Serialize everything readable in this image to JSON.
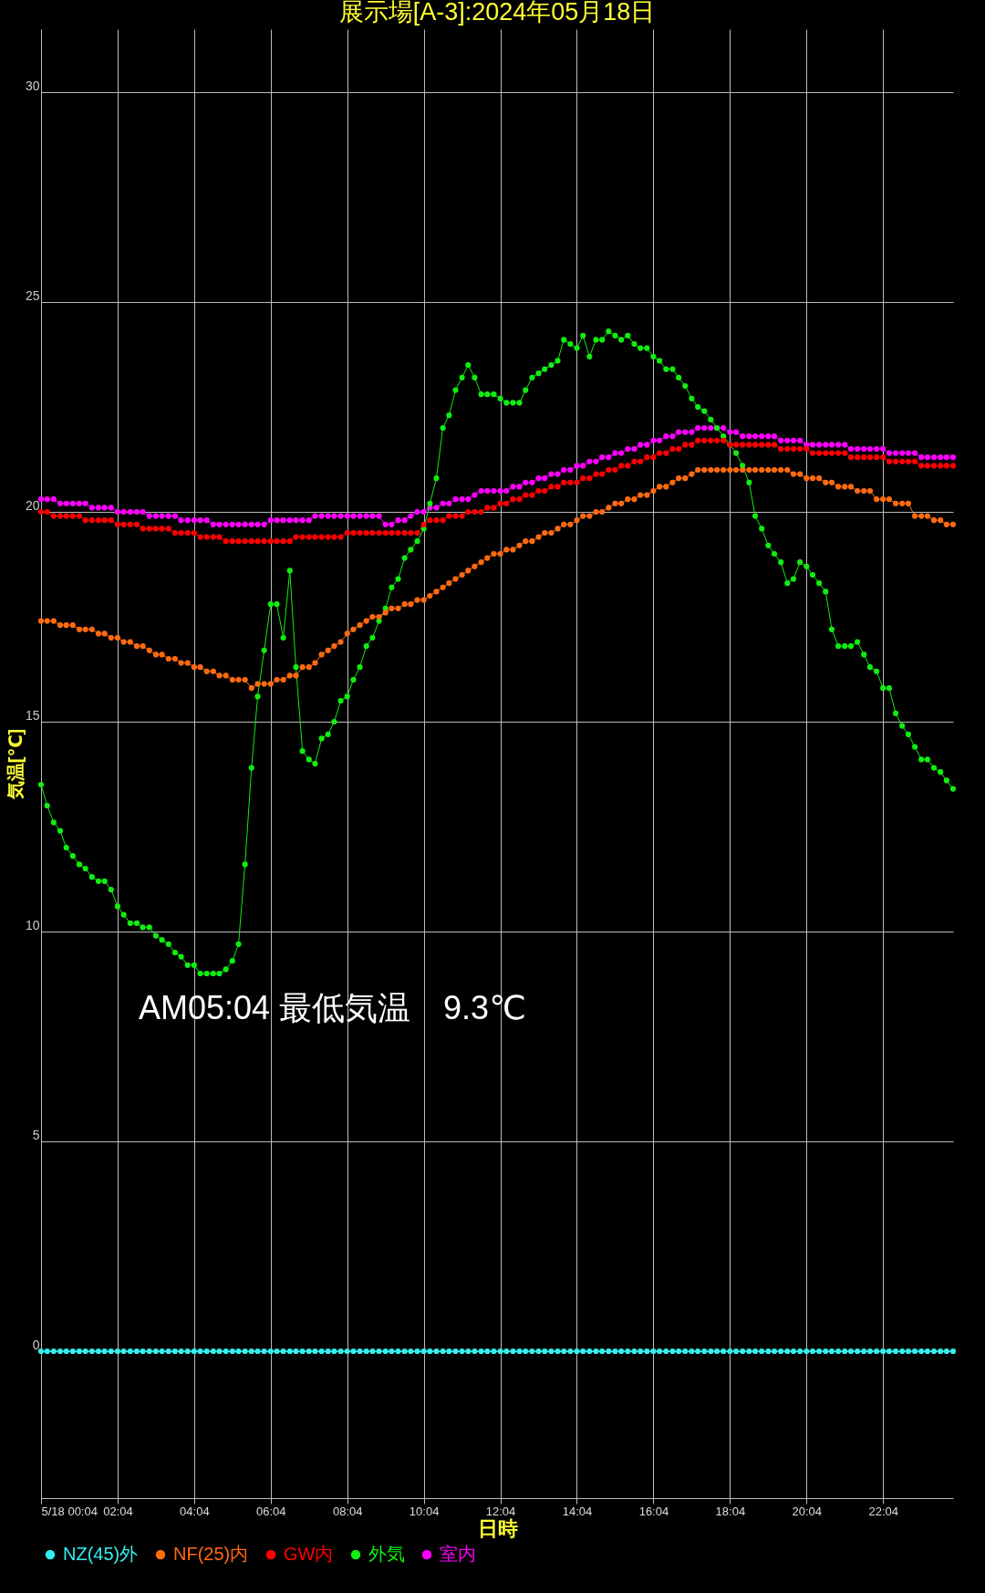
{
  "chart_data": {
    "type": "line",
    "title": "展示場[A-3]:2024年05月18日",
    "xlabel": "日時",
    "ylabel": "気温[℃]",
    "annotations": [
      "AM05:04 最低気温　9.3℃"
    ],
    "x": [
      0.07,
      0.23,
      0.4,
      0.57,
      0.73,
      0.9,
      1.07,
      1.23,
      1.4,
      1.57,
      1.73,
      1.9,
      2.07,
      2.23,
      2.4,
      2.57,
      2.73,
      2.9,
      3.07,
      3.23,
      3.4,
      3.57,
      3.73,
      3.9,
      4.07,
      4.23,
      4.4,
      4.57,
      4.73,
      4.9,
      5.07,
      5.23,
      5.4,
      5.57,
      5.73,
      5.9,
      6.07,
      6.23,
      6.4,
      6.57,
      6.73,
      6.9,
      7.07,
      7.23,
      7.4,
      7.57,
      7.73,
      7.9,
      8.07,
      8.23,
      8.4,
      8.57,
      8.73,
      8.9,
      9.07,
      9.23,
      9.4,
      9.57,
      9.73,
      9.9,
      10.07,
      10.23,
      10.4,
      10.57,
      10.73,
      10.9,
      11.07,
      11.23,
      11.4,
      11.57,
      11.73,
      11.9,
      12.07,
      12.23,
      12.4,
      12.57,
      12.73,
      12.9,
      13.07,
      13.23,
      13.4,
      13.57,
      13.73,
      13.9,
      14.07,
      14.23,
      14.4,
      14.57,
      14.73,
      14.9,
      15.07,
      15.23,
      15.4,
      15.57,
      15.73,
      15.9,
      16.07,
      16.23,
      16.4,
      16.57,
      16.73,
      16.9,
      17.07,
      17.23,
      17.4,
      17.57,
      17.73,
      17.9,
      18.07,
      18.23,
      18.4,
      18.57,
      18.73,
      18.9,
      19.07,
      19.23,
      19.4,
      19.57,
      19.73,
      19.9,
      20.07,
      20.23,
      20.4,
      20.57,
      20.73,
      20.9,
      21.07,
      21.23,
      21.4,
      21.57,
      21.73,
      21.9,
      22.07,
      22.23,
      22.4,
      22.57,
      22.73,
      22.9,
      23.07,
      23.23,
      23.4,
      23.57,
      23.73,
      23.9
    ],
    "series": [
      {
        "name": "NZ(45)外",
        "color": "#33eeee",
        "values": [
          0,
          0,
          0,
          0,
          0,
          0,
          0,
          0,
          0,
          0,
          0,
          0,
          0,
          0,
          0,
          0,
          0,
          0,
          0,
          0,
          0,
          0,
          0,
          0,
          0,
          0,
          0,
          0,
          0,
          0,
          0,
          0,
          0,
          0,
          0,
          0,
          0,
          0,
          0,
          0,
          0,
          0,
          0,
          0,
          0,
          0,
          0,
          0,
          0,
          0,
          0,
          0,
          0,
          0,
          0,
          0,
          0,
          0,
          0,
          0,
          0,
          0,
          0,
          0,
          0,
          0,
          0,
          0,
          0,
          0,
          0,
          0,
          0,
          0,
          0,
          0,
          0,
          0,
          0,
          0,
          0,
          0,
          0,
          0,
          0,
          0,
          0,
          0,
          0,
          0,
          0,
          0,
          0,
          0,
          0,
          0,
          0,
          0,
          0,
          0,
          0,
          0,
          0,
          0,
          0,
          0,
          0,
          0,
          0,
          0,
          0,
          0,
          0,
          0,
          0,
          0,
          0,
          0,
          0,
          0,
          0,
          0,
          0,
          0,
          0,
          0,
          0,
          0,
          0,
          0,
          0,
          0,
          0,
          0,
          0,
          0,
          0,
          0,
          0,
          0,
          0,
          0,
          0,
          0
        ]
      },
      {
        "name": "NF(25)内",
        "color": "#ff6a10",
        "values": [
          17.4,
          17.4,
          17.4,
          17.3,
          17.3,
          17.3,
          17.2,
          17.2,
          17.2,
          17.1,
          17.1,
          17.0,
          17.0,
          16.9,
          16.9,
          16.8,
          16.8,
          16.7,
          16.6,
          16.6,
          16.5,
          16.5,
          16.4,
          16.4,
          16.3,
          16.3,
          16.2,
          16.2,
          16.1,
          16.1,
          16.0,
          16.0,
          16.0,
          15.8,
          15.9,
          15.9,
          15.9,
          16.0,
          16.0,
          16.1,
          16.1,
          16.3,
          16.3,
          16.4,
          16.6,
          16.7,
          16.8,
          16.9,
          17.1,
          17.2,
          17.3,
          17.4,
          17.5,
          17.5,
          17.6,
          17.7,
          17.7,
          17.8,
          17.8,
          17.9,
          17.9,
          18.0,
          18.1,
          18.2,
          18.3,
          18.4,
          18.5,
          18.6,
          18.7,
          18.8,
          18.9,
          19.0,
          19.0,
          19.1,
          19.1,
          19.2,
          19.3,
          19.3,
          19.4,
          19.5,
          19.5,
          19.6,
          19.7,
          19.7,
          19.8,
          19.9,
          19.9,
          20.0,
          20.0,
          20.1,
          20.2,
          20.2,
          20.3,
          20.3,
          20.4,
          20.4,
          20.5,
          20.6,
          20.6,
          20.7,
          20.8,
          20.8,
          20.9,
          21.0,
          21.0,
          21.0,
          21.0,
          21.0,
          21.0,
          21.0,
          21.0,
          21.0,
          21.0,
          21.0,
          21.0,
          21.0,
          21.0,
          21.0,
          20.9,
          20.9,
          20.8,
          20.8,
          20.8,
          20.7,
          20.7,
          20.6,
          20.6,
          20.6,
          20.5,
          20.5,
          20.5,
          20.3,
          20.3,
          20.3,
          20.2,
          20.2,
          20.2,
          19.9,
          19.9,
          19.9,
          19.8,
          19.8,
          19.7,
          19.7
        ]
      },
      {
        "name": "GW内",
        "color": "#ff0000",
        "values": [
          20.0,
          20.0,
          19.9,
          19.9,
          19.9,
          19.9,
          19.9,
          19.8,
          19.8,
          19.8,
          19.8,
          19.8,
          19.7,
          19.7,
          19.7,
          19.7,
          19.6,
          19.6,
          19.6,
          19.6,
          19.6,
          19.5,
          19.5,
          19.5,
          19.5,
          19.4,
          19.4,
          19.4,
          19.4,
          19.3,
          19.3,
          19.3,
          19.3,
          19.3,
          19.3,
          19.3,
          19.3,
          19.3,
          19.3,
          19.3,
          19.4,
          19.4,
          19.4,
          19.4,
          19.4,
          19.4,
          19.4,
          19.4,
          19.5,
          19.5,
          19.5,
          19.5,
          19.5,
          19.5,
          19.5,
          19.5,
          19.5,
          19.5,
          19.5,
          19.5,
          19.7,
          19.8,
          19.8,
          19.8,
          19.9,
          19.9,
          19.9,
          20.0,
          20.0,
          20.0,
          20.1,
          20.1,
          20.2,
          20.2,
          20.3,
          20.3,
          20.4,
          20.4,
          20.5,
          20.5,
          20.6,
          20.6,
          20.7,
          20.7,
          20.7,
          20.8,
          20.8,
          20.9,
          20.9,
          21.0,
          21.0,
          21.1,
          21.1,
          21.2,
          21.2,
          21.3,
          21.3,
          21.4,
          21.4,
          21.5,
          21.5,
          21.6,
          21.6,
          21.7,
          21.7,
          21.7,
          21.7,
          21.7,
          21.6,
          21.6,
          21.6,
          21.6,
          21.6,
          21.6,
          21.6,
          21.6,
          21.5,
          21.5,
          21.5,
          21.5,
          21.5,
          21.4,
          21.4,
          21.4,
          21.4,
          21.4,
          21.4,
          21.3,
          21.3,
          21.3,
          21.3,
          21.3,
          21.3,
          21.2,
          21.2,
          21.2,
          21.2,
          21.2,
          21.1,
          21.1,
          21.1,
          21.1,
          21.1,
          21.1
        ]
      },
      {
        "name": "外気",
        "color": "#11ee11",
        "values": [
          13.5,
          13.0,
          12.6,
          12.4,
          12.0,
          11.8,
          11.6,
          11.5,
          11.3,
          11.2,
          11.2,
          11.0,
          10.6,
          10.4,
          10.2,
          10.2,
          10.1,
          10.1,
          9.9,
          9.8,
          9.7,
          9.5,
          9.4,
          9.2,
          9.2,
          9.0,
          9.0,
          9.0,
          9.0,
          9.1,
          9.3,
          9.7,
          11.6,
          13.9,
          15.6,
          16.7,
          17.8,
          17.8,
          17.0,
          18.6,
          16.3,
          14.3,
          14.1,
          14.0,
          14.6,
          14.7,
          15.0,
          15.5,
          15.6,
          16.0,
          16.3,
          16.8,
          17.0,
          17.4,
          17.7,
          18.2,
          18.4,
          18.9,
          19.1,
          19.3,
          19.6,
          20.2,
          20.8,
          22.0,
          22.3,
          22.9,
          23.2,
          23.5,
          23.2,
          22.8,
          22.8,
          22.8,
          22.7,
          22.6,
          22.6,
          22.6,
          22.9,
          23.2,
          23.3,
          23.4,
          23.5,
          23.6,
          24.1,
          24.0,
          23.9,
          24.2,
          23.7,
          24.1,
          24.1,
          24.3,
          24.2,
          24.1,
          24.2,
          24.0,
          23.9,
          23.9,
          23.7,
          23.6,
          23.4,
          23.4,
          23.2,
          23.0,
          22.7,
          22.5,
          22.4,
          22.2,
          22.0,
          21.8,
          21.6,
          21.4,
          21.1,
          20.7,
          19.9,
          19.6,
          19.2,
          19.0,
          18.8,
          18.3,
          18.4,
          18.8,
          18.7,
          18.5,
          18.3,
          18.1,
          17.2,
          16.8,
          16.8,
          16.8,
          16.9,
          16.6,
          16.3,
          16.2,
          15.8,
          15.8,
          15.2,
          14.9,
          14.7,
          14.4,
          14.1,
          14.1,
          13.9,
          13.8,
          13.6,
          13.4
        ]
      },
      {
        "name": "室内",
        "color": "#ff00ff",
        "values": [
          20.3,
          20.3,
          20.3,
          20.2,
          20.2,
          20.2,
          20.2,
          20.2,
          20.1,
          20.1,
          20.1,
          20.1,
          20.0,
          20.0,
          20.0,
          20.0,
          20.0,
          19.9,
          19.9,
          19.9,
          19.9,
          19.9,
          19.8,
          19.8,
          19.8,
          19.8,
          19.8,
          19.7,
          19.7,
          19.7,
          19.7,
          19.7,
          19.7,
          19.7,
          19.7,
          19.7,
          19.8,
          19.8,
          19.8,
          19.8,
          19.8,
          19.8,
          19.8,
          19.9,
          19.9,
          19.9,
          19.9,
          19.9,
          19.9,
          19.9,
          19.9,
          19.9,
          19.9,
          19.9,
          19.7,
          19.7,
          19.8,
          19.8,
          19.9,
          20.0,
          20.0,
          20.1,
          20.1,
          20.2,
          20.2,
          20.3,
          20.3,
          20.3,
          20.4,
          20.5,
          20.5,
          20.5,
          20.5,
          20.5,
          20.6,
          20.6,
          20.7,
          20.7,
          20.8,
          20.8,
          20.9,
          20.9,
          21.0,
          21.0,
          21.1,
          21.1,
          21.2,
          21.2,
          21.3,
          21.3,
          21.4,
          21.4,
          21.5,
          21.5,
          21.6,
          21.6,
          21.7,
          21.7,
          21.8,
          21.8,
          21.9,
          21.9,
          21.9,
          22.0,
          22.0,
          22.0,
          22.0,
          22.0,
          21.9,
          21.9,
          21.8,
          21.8,
          21.8,
          21.8,
          21.8,
          21.8,
          21.7,
          21.7,
          21.7,
          21.7,
          21.6,
          21.6,
          21.6,
          21.6,
          21.6,
          21.6,
          21.6,
          21.5,
          21.5,
          21.5,
          21.5,
          21.5,
          21.5,
          21.4,
          21.4,
          21.4,
          21.4,
          21.4,
          21.3,
          21.3,
          21.3,
          21.3,
          21.3,
          21.3
        ]
      }
    ],
    "xlim": [
      0.07,
      23.9
    ],
    "xticks": [
      {
        "value": 0.07,
        "label": "5/18 00:04"
      },
      {
        "value": 2.07,
        "label": "02:04"
      },
      {
        "value": 4.07,
        "label": "04:04"
      },
      {
        "value": 6.07,
        "label": "06:04"
      },
      {
        "value": 8.07,
        "label": "08:04"
      },
      {
        "value": 10.07,
        "label": "10:04"
      },
      {
        "value": 12.07,
        "label": "12:04"
      },
      {
        "value": 14.07,
        "label": "14:04"
      },
      {
        "value": 16.07,
        "label": "16:04"
      },
      {
        "value": 18.07,
        "label": "18:04"
      },
      {
        "value": 20.07,
        "label": "20:04"
      },
      {
        "value": 22.07,
        "label": "22:04"
      }
    ],
    "ylim": [
      -3.5,
      31.5
    ],
    "yticks": [
      0,
      5,
      10,
      15,
      20,
      25,
      30
    ],
    "grid": true,
    "legend": "bottom left",
    "marker": "circle"
  }
}
